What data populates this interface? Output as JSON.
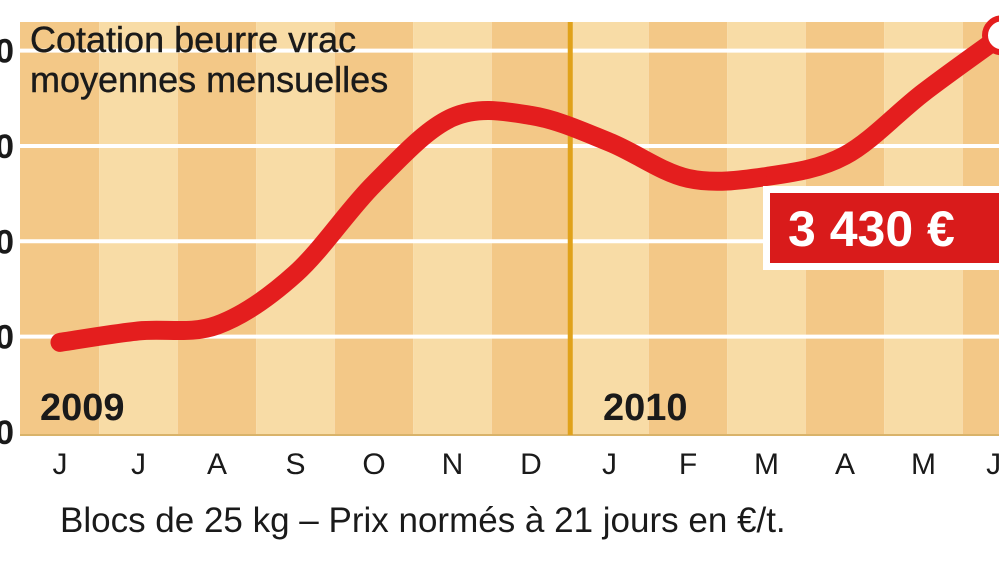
{
  "chart_data": {
    "type": "line",
    "title": "Cotation beurre vrac\nmoyennes mensuelles",
    "xlabel": "Blocs de 25 kg – Prix normés à 21 jours en €/t.",
    "ylabel": "",
    "categories": [
      "J",
      "J",
      "A",
      "S",
      "O",
      "N",
      "D",
      "J",
      "F",
      "M",
      "A",
      "M",
      "Ju"
    ],
    "year_labels": [
      {
        "text": "2009",
        "at": 0
      },
      {
        "text": "2010",
        "at": 7
      }
    ],
    "series": [
      {
        "values": [
          2470,
          2530,
          2560,
          2830,
          3300,
          3650,
          3660,
          3520,
          3330,
          3340,
          3450,
          3780,
          4080
        ]
      }
    ],
    "ylim": [
      2000,
      4150
    ],
    "gridlines": [
      2000,
      2500,
      3000,
      3500,
      4000
    ],
    "grid": true,
    "callout": {
      "text": "3 430 €"
    },
    "colors": {
      "line": "#e41e1e",
      "band_light": "#f8dca6",
      "band_dark": "#f3c887",
      "year_divider": "#e0a21a",
      "callout_bg": "#d91b1b",
      "callout_text": "#ffffff"
    }
  }
}
